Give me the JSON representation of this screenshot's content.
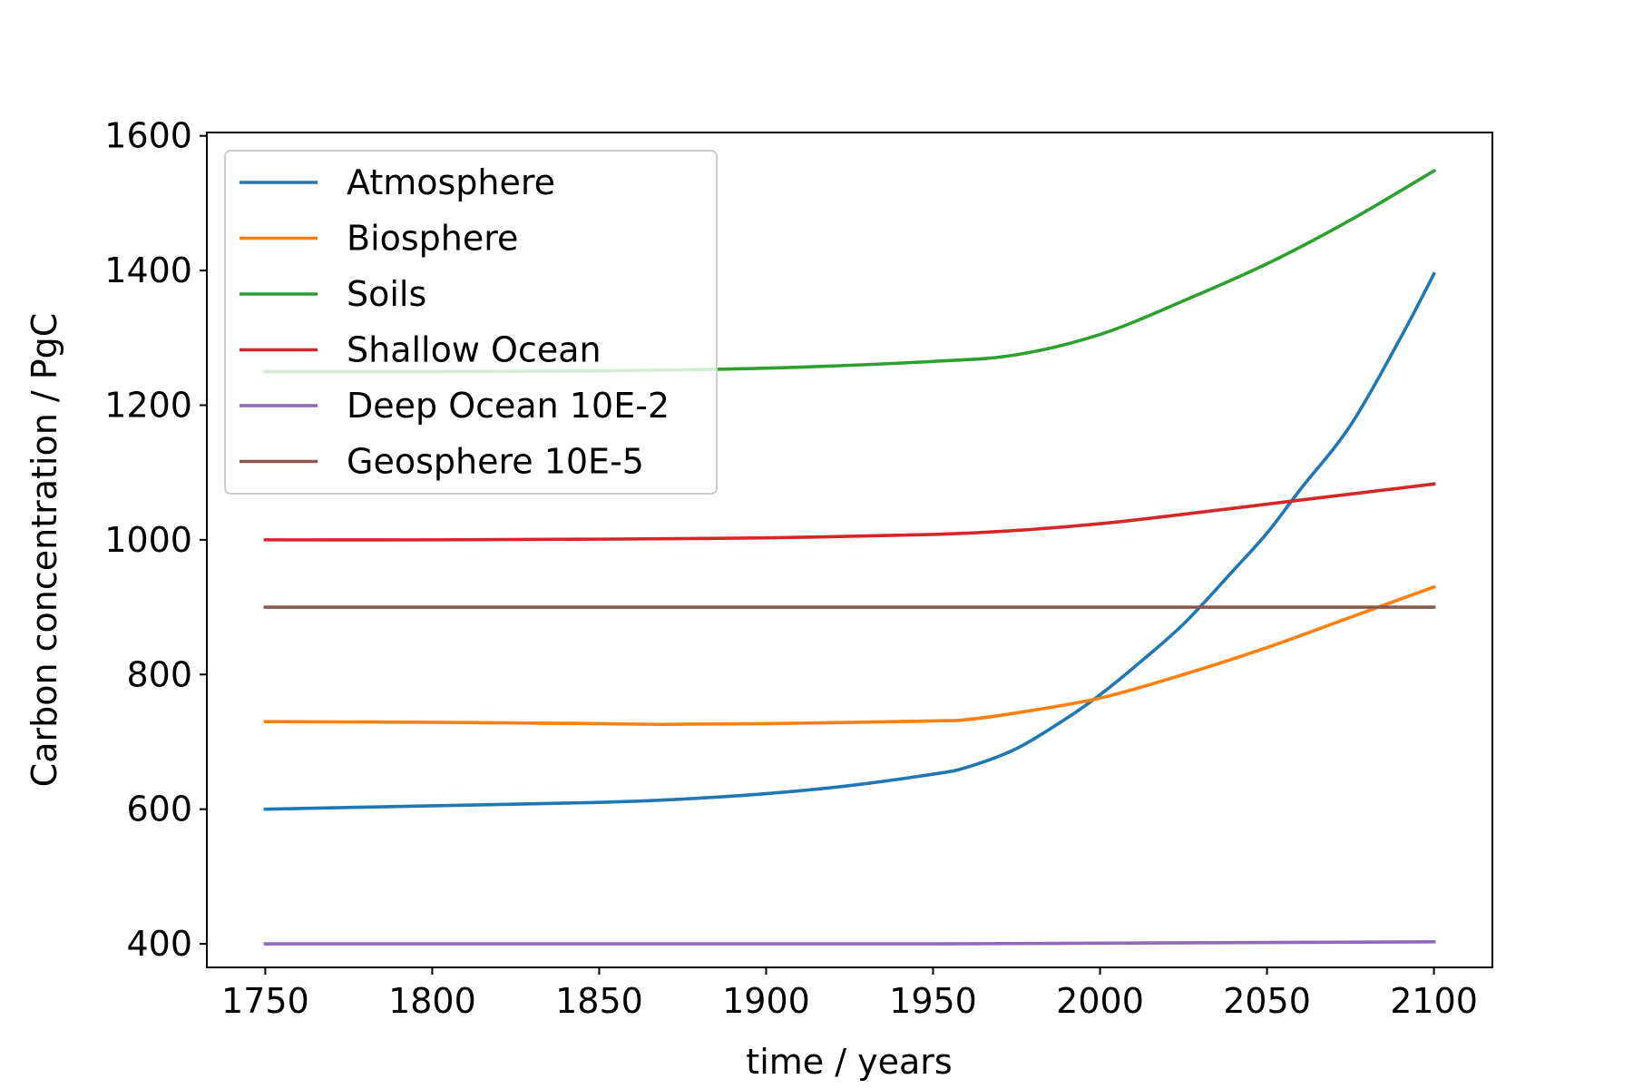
{
  "chart_data": {
    "type": "line",
    "xlabel": "time / years",
    "ylabel": "Carbon concentration / PgC",
    "xlim": [
      1732.5,
      2117.5
    ],
    "ylim": [
      365,
      1605
    ],
    "x_ticks": [
      1750,
      1800,
      1850,
      1900,
      1950,
      2000,
      2050,
      2100
    ],
    "y_ticks": [
      400,
      600,
      800,
      1000,
      1200,
      1400,
      1600
    ],
    "legend_position": "upper-left",
    "grid": false,
    "series": [
      {
        "name": "Atmosphere",
        "color": "#1f77b4",
        "x": [
          1750,
          1800,
          1850,
          1875,
          1900,
          1925,
          1950,
          1960,
          1975,
          1990,
          2000,
          2010,
          2025,
          2040,
          2050,
          2060,
          2075,
          2090,
          2100
        ],
        "y": [
          600,
          605,
          610,
          615,
          623,
          635,
          652,
          662,
          690,
          735,
          770,
          810,
          875,
          955,
          1010,
          1075,
          1170,
          1300,
          1395
        ]
      },
      {
        "name": "Biosphere",
        "color": "#ff7f0e",
        "x": [
          1750,
          1800,
          1850,
          1870,
          1900,
          1950,
          1960,
          1975,
          2000,
          2025,
          2050,
          2075,
          2100
        ],
        "y": [
          730,
          729,
          727,
          726,
          727,
          731,
          733,
          743,
          765,
          800,
          840,
          885,
          930
        ]
      },
      {
        "name": "Soils",
        "color": "#2ca02c",
        "x": [
          1750,
          1800,
          1850,
          1900,
          1950,
          1975,
          2000,
          2025,
          2050,
          2075,
          2100
        ],
        "y": [
          1250,
          1250,
          1251,
          1255,
          1265,
          1275,
          1305,
          1355,
          1410,
          1475,
          1548
        ]
      },
      {
        "name": "Shallow Ocean",
        "color": "#d62728",
        "x": [
          1750,
          1800,
          1850,
          1900,
          1950,
          1975,
          2000,
          2025,
          2050,
          2075,
          2100
        ],
        "y": [
          1000,
          1000,
          1001,
          1003,
          1008,
          1014,
          1024,
          1038,
          1053,
          1068,
          1083
        ]
      },
      {
        "name": "Deep Ocean 10E-2",
        "color": "#9467bd",
        "x": [
          1750,
          1850,
          1950,
          2000,
          2050,
          2100
        ],
        "y": [
          400,
          400,
          400,
          401,
          402,
          403
        ]
      },
      {
        "name": "Geosphere 10E-5",
        "color": "#8c564b",
        "x": [
          1750,
          2100
        ],
        "y": [
          900,
          900
        ]
      }
    ]
  }
}
